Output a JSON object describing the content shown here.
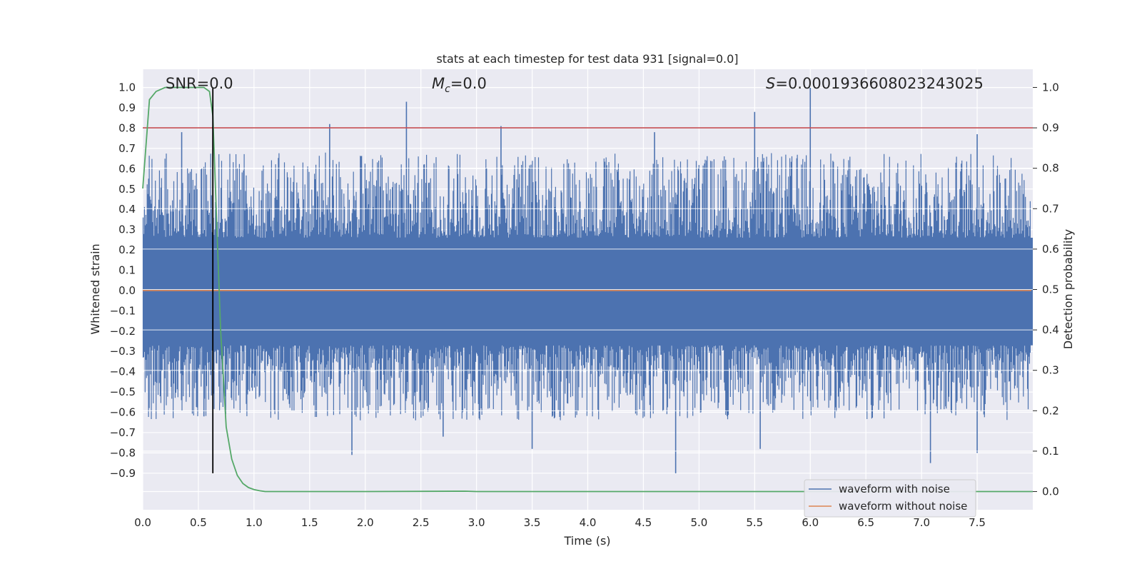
{
  "chart_data": {
    "type": "line",
    "title": "stats at each timestep for test data 931 [signal=0.0]",
    "xlabel": "Time (s)",
    "ylabel_left": "Whitened strain",
    "ylabel_right": "Detection probability",
    "xlim": [
      0.0,
      8.0
    ],
    "ylim_left": [
      -1.08,
      1.09
    ],
    "ylim_right": [
      -0.045,
      1.045
    ],
    "grid": true,
    "legend_position": "lower right",
    "x_ticks": [
      "0.0",
      "0.5",
      "1.0",
      "1.5",
      "2.0",
      "2.5",
      "3.0",
      "3.5",
      "4.0",
      "4.5",
      "5.0",
      "5.5",
      "6.0",
      "6.5",
      "7.0",
      "7.5"
    ],
    "y_ticks_left": [
      "1.0",
      "0.9",
      "0.8",
      "0.7",
      "0.6",
      "0.5",
      "0.4",
      "0.3",
      "0.2",
      "0.1",
      "0.0",
      "−0.1",
      "−0.2",
      "−0.3",
      "−0.4",
      "−0.5",
      "−0.6",
      "−0.7",
      "−0.8",
      "−0.9"
    ],
    "y_ticks_right": [
      "1.0",
      "0.9",
      "0.8",
      "0.7",
      "0.6",
      "0.5",
      "0.4",
      "0.3",
      "0.2",
      "0.1",
      "0.0"
    ],
    "annotations": {
      "snr": "SNR=0.0",
      "mc_symbol": "M",
      "mc_sub": "c",
      "mc_value": "=0.0",
      "s_symbol": "S",
      "s_value": "=0.0001936608023243025"
    },
    "series": [
      {
        "name": "waveform with noise",
        "color": "#4c72b0",
        "axis": "left",
        "description_of_range": "dense noise between about -0.9 and 1.0",
        "spikes": [
          {
            "x": 0.35,
            "y": 0.78
          },
          {
            "x": 1.68,
            "y": 0.82
          },
          {
            "x": 2.37,
            "y": 0.93
          },
          {
            "x": 3.22,
            "y": 0.81
          },
          {
            "x": 4.6,
            "y": 0.78
          },
          {
            "x": 5.5,
            "y": 0.88
          },
          {
            "x": 6.0,
            "y": 1.0
          },
          {
            "x": 7.5,
            "y": 0.77
          },
          {
            "x": 1.88,
            "y": -0.81
          },
          {
            "x": 3.5,
            "y": -0.78
          },
          {
            "x": 4.79,
            "y": -0.9
          },
          {
            "x": 5.55,
            "y": -0.78
          },
          {
            "x": 7.08,
            "y": -0.85
          },
          {
            "x": 7.5,
            "y": -0.8
          },
          {
            "x": 0.55,
            "y": -0.62
          },
          {
            "x": 2.7,
            "y": -0.72
          }
        ]
      },
      {
        "name": "waveform without noise",
        "color": "#dd8452",
        "axis": "left",
        "x": [
          0.0,
          8.0
        ],
        "y": [
          0.0,
          0.0
        ]
      },
      {
        "name": "",
        "color": "#55a868",
        "axis": "right",
        "x": [
          0.0,
          0.06,
          0.12,
          0.2,
          0.3,
          0.4,
          0.5,
          0.55,
          0.6,
          0.63,
          0.66,
          0.7,
          0.75,
          0.8,
          0.85,
          0.9,
          0.95,
          1.0,
          1.05,
          1.1,
          2.0,
          2.9,
          3.0,
          4.0,
          5.0,
          6.0,
          7.0,
          8.0
        ],
        "y": [
          0.75,
          0.97,
          0.99,
          1.0,
          1.0,
          1.0,
          1.0,
          1.0,
          0.99,
          0.93,
          0.7,
          0.4,
          0.16,
          0.08,
          0.04,
          0.02,
          0.01,
          0.005,
          0.002,
          0.0,
          0.0,
          0.001,
          0.0,
          0.0,
          0.0,
          0.0,
          0.0,
          0.0
        ]
      }
    ],
    "threshold_line": {
      "axis": "right",
      "y": 0.9,
      "color": "#c44e52"
    },
    "marker_line": {
      "x": 0.63,
      "y_from": -0.9,
      "y_to": 1.0,
      "axis": "left",
      "color": "#000000"
    }
  }
}
